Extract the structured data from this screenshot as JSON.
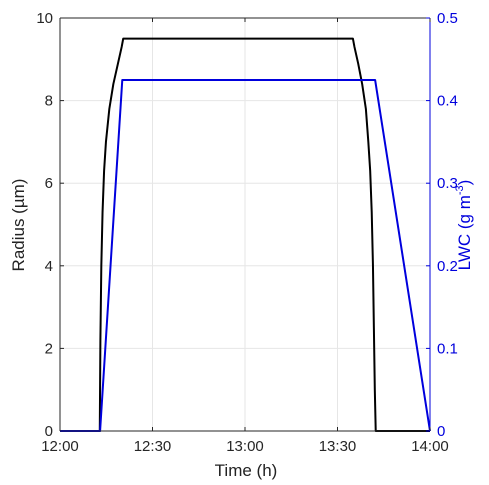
{
  "chart_data": {
    "type": "line",
    "title": "",
    "xlabel": "Time (h)",
    "ylabel_left": "Radius (µm)",
    "ylabel_right_base": "LWC (g m",
    "ylabel_right_sup": "-3",
    "ylabel_right_end": ")",
    "xlim": [
      0,
      120
    ],
    "ylim_left": [
      0,
      10
    ],
    "ylim_right": [
      0,
      0.5
    ],
    "x_ticks": [
      0,
      30,
      60,
      90,
      120
    ],
    "x_tick_labels": [
      "12:00",
      "12:30",
      "13:00",
      "13:30",
      "14:00"
    ],
    "y_left_ticks": [
      0,
      2,
      4,
      6,
      8,
      10
    ],
    "y_left_tick_labels": [
      "0",
      "2",
      "4",
      "6",
      "8",
      "10"
    ],
    "y_right_ticks": [
      0,
      0.1,
      0.2,
      0.3,
      0.4,
      0.5
    ],
    "y_right_tick_labels": [
      "0",
      "0.1",
      "0.2",
      "0.3",
      "0.4",
      "0.5"
    ],
    "grid": true,
    "series": [
      {
        "axis": "left",
        "color": "#000000",
        "x": [
          0,
          12.9,
          13.1,
          13.4,
          13.8,
          14.3,
          14.9,
          16,
          17.3,
          18.8,
          20,
          20.5,
          95,
          95.5,
          96.7,
          98,
          99.2,
          100,
          100.6,
          101.1,
          101.5,
          101.8,
          102.1,
          102.4,
          120
        ],
        "y": [
          0,
          0,
          2.2,
          4.0,
          5.3,
          6.3,
          7.0,
          7.8,
          8.4,
          8.9,
          9.3,
          9.5,
          9.5,
          9.3,
          8.9,
          8.4,
          7.8,
          7.0,
          6.3,
          5.3,
          4.0,
          2.5,
          1.0,
          0,
          0
        ]
      },
      {
        "axis": "right",
        "color": "#0000dd",
        "x": [
          0,
          13,
          20.2,
          102.2,
          120
        ],
        "y": [
          0,
          0,
          0.425,
          0.425,
          0
        ]
      }
    ]
  }
}
